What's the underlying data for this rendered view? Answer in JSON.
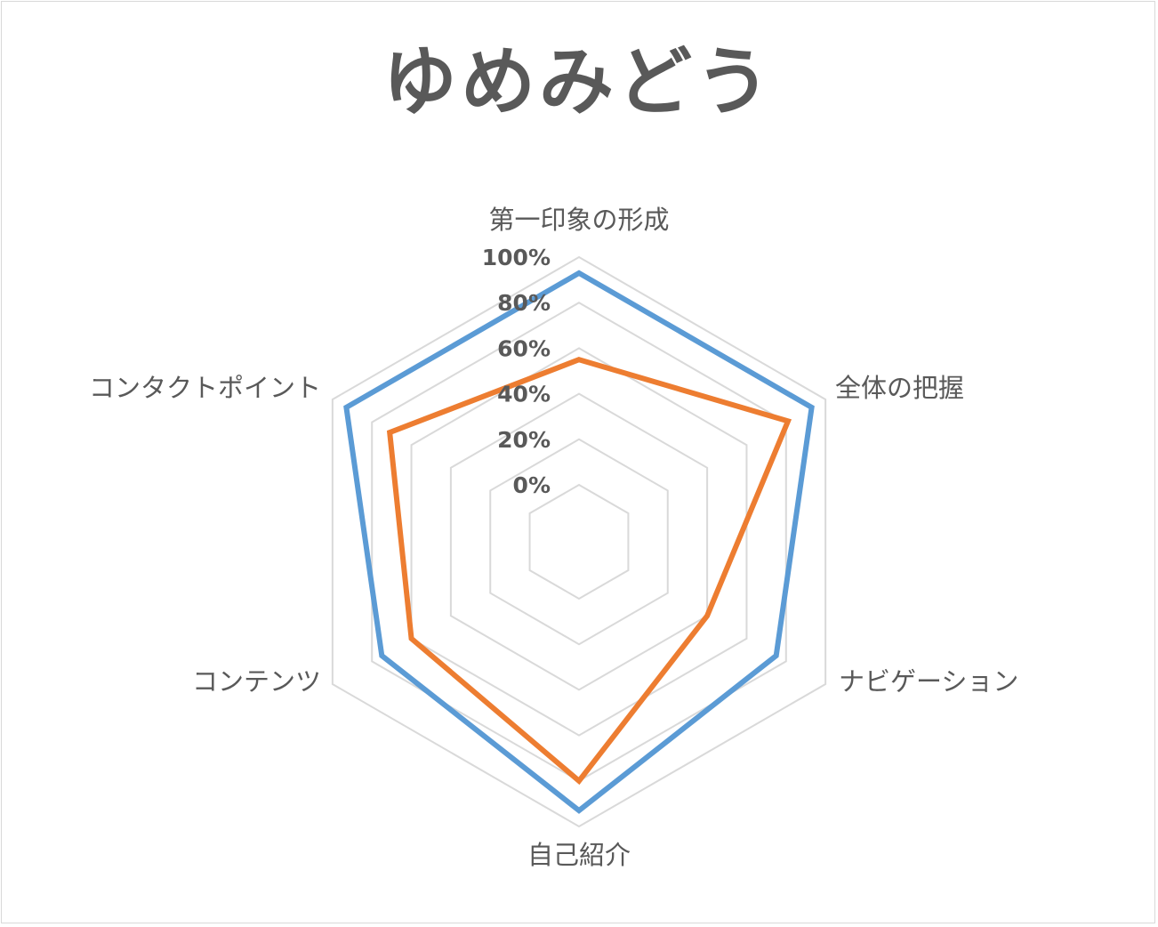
{
  "chart_data": {
    "type": "radar",
    "title": "ゆめみどう",
    "categories": [
      "第一印象の形成",
      "全体の把握",
      "ナビゲーション",
      "自己紹介",
      "コンテンツ",
      "コンタクトポイント"
    ],
    "ticks": [
      "0%",
      "20%",
      "40%",
      "60%",
      "80%",
      "100%"
    ],
    "rmin": 0,
    "rmax": 100,
    "grid": true,
    "legend": "none",
    "series": [
      {
        "values": [
          93,
          93,
          75,
          93,
          75,
          93
        ],
        "color": "#5b9bd5"
      },
      {
        "values": [
          55,
          81,
          40,
          80,
          60,
          71
        ],
        "color": "#ed7d31"
      }
    ]
  }
}
